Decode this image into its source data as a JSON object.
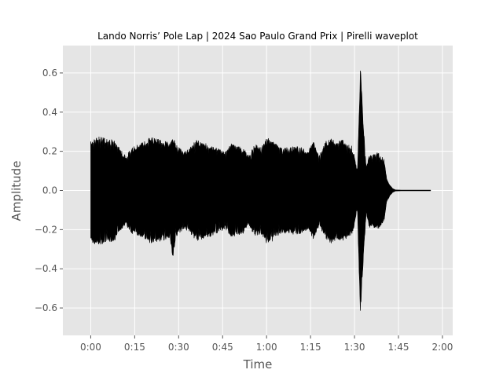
{
  "chart_data": {
    "type": "area",
    "title": "Lando Norris’ Pole Lap | 2024 Sao Paulo Grand Prix | Pirelli waveplot",
    "xlabel": "Time",
    "ylabel": "Amplitude",
    "x_unit": "seconds",
    "xlim": [
      -9.5,
      123.5
    ],
    "ylim": [
      -0.74,
      0.74
    ],
    "x_ticks": [
      0,
      15,
      30,
      45,
      60,
      75,
      90,
      105,
      120
    ],
    "x_tick_labels": [
      "0:00",
      "0:15",
      "0:30",
      "0:45",
      "1:00",
      "1:15",
      "1:30",
      "1:45",
      "2:00"
    ],
    "y_ticks": [
      -0.6,
      -0.4,
      -0.2,
      0.0,
      0.2,
      0.4,
      0.6
    ],
    "y_tick_labels": [
      "−0.6",
      "−0.4",
      "−0.2",
      "0.0",
      "0.2",
      "0.4",
      "0.6"
    ],
    "grid": true,
    "background": "#e5e5e5",
    "grid_color": "#ffffff",
    "wave_color": "#000000",
    "series": [
      {
        "x": [
          0,
          0.5,
          2,
          5,
          8,
          10,
          11,
          12,
          14,
          18,
          20,
          22,
          24,
          26,
          27,
          28,
          29,
          30,
          32,
          34,
          36,
          38,
          40,
          42,
          44,
          46,
          48,
          50,
          52,
          54,
          56,
          58,
          60,
          62,
          64,
          66,
          68,
          70,
          72,
          74,
          76,
          77,
          78,
          80,
          82,
          84,
          86,
          88,
          89,
          90,
          91,
          91.5,
          92,
          93,
          94,
          95,
          96,
          98,
          99,
          100,
          101,
          102,
          103,
          104,
          106,
          110,
          116
        ],
        "y_max": [
          0.25,
          0.27,
          0.28,
          0.27,
          0.26,
          0.22,
          0.19,
          0.18,
          0.22,
          0.25,
          0.27,
          0.27,
          0.26,
          0.25,
          0.24,
          0.28,
          0.24,
          0.22,
          0.2,
          0.22,
          0.26,
          0.25,
          0.24,
          0.23,
          0.21,
          0.2,
          0.24,
          0.23,
          0.22,
          0.18,
          0.24,
          0.22,
          0.27,
          0.26,
          0.23,
          0.22,
          0.22,
          0.23,
          0.22,
          0.2,
          0.25,
          0.22,
          0.18,
          0.25,
          0.27,
          0.25,
          0.26,
          0.24,
          0.23,
          0.18,
          0.1,
          0.36,
          0.67,
          0.36,
          0.12,
          0.18,
          0.18,
          0.2,
          0.17,
          0.17,
          0.06,
          0.03,
          0.01,
          0.003,
          0.002,
          0.002,
          0.002
        ],
        "y_min": [
          -0.25,
          -0.27,
          -0.28,
          -0.27,
          -0.26,
          -0.22,
          -0.19,
          -0.18,
          -0.22,
          -0.25,
          -0.27,
          -0.27,
          -0.26,
          -0.25,
          -0.24,
          -0.35,
          -0.24,
          -0.22,
          -0.2,
          -0.22,
          -0.26,
          -0.25,
          -0.24,
          -0.23,
          -0.21,
          -0.2,
          -0.24,
          -0.23,
          -0.22,
          -0.18,
          -0.24,
          -0.22,
          -0.27,
          -0.26,
          -0.23,
          -0.22,
          -0.22,
          -0.23,
          -0.22,
          -0.2,
          -0.25,
          -0.22,
          -0.18,
          -0.25,
          -0.27,
          -0.25,
          -0.26,
          -0.24,
          -0.23,
          -0.18,
          -0.1,
          -0.4,
          -0.67,
          -0.36,
          -0.12,
          -0.19,
          -0.19,
          -0.2,
          -0.18,
          -0.17,
          -0.06,
          -0.03,
          -0.01,
          -0.003,
          -0.002,
          -0.002,
          -0.002
        ]
      }
    ]
  }
}
